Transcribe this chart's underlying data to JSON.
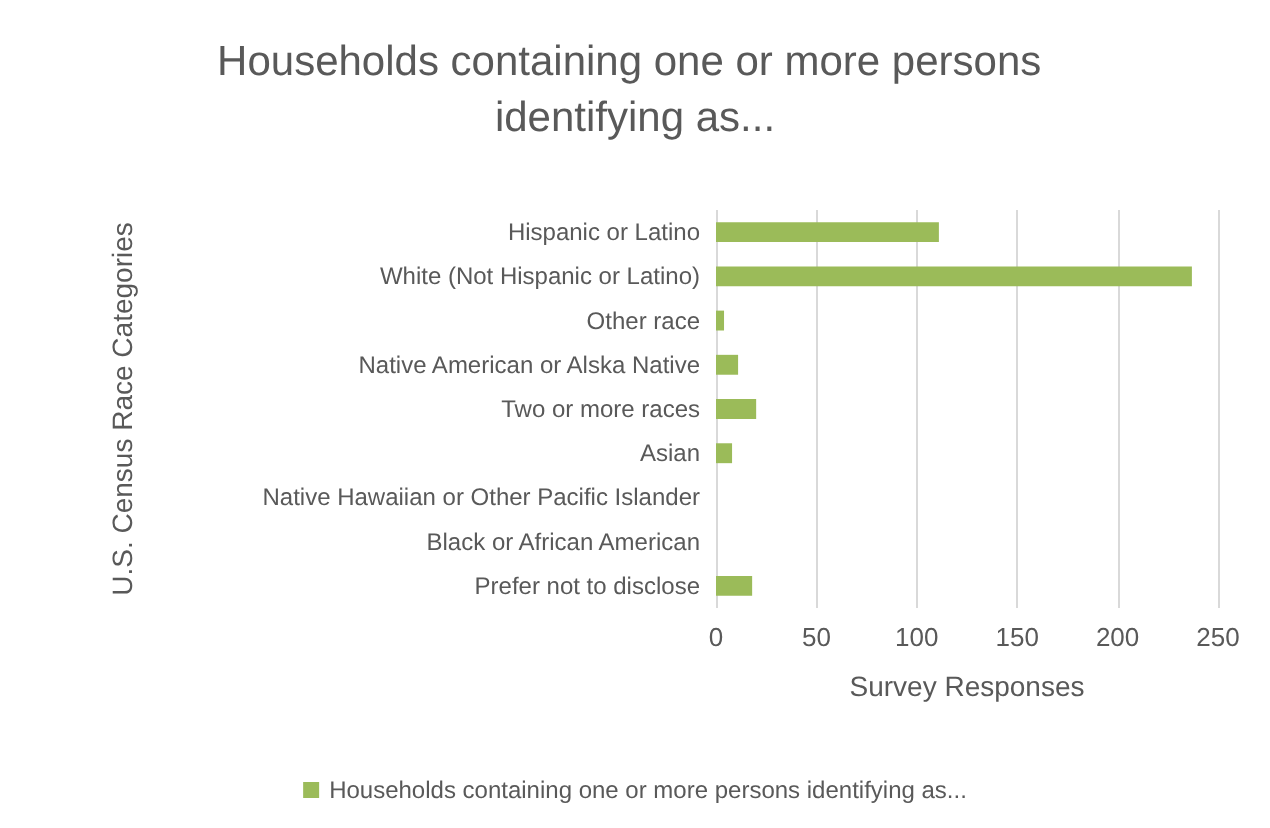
{
  "chart_data": {
    "type": "bar",
    "orientation": "horizontal",
    "title": "Households containing one or more persons identifying as...",
    "categories": [
      "Hispanic or Latino",
      "White (Not Hispanic or Latino)",
      "Other race",
      "Native American or Alska Native",
      "Two or more races",
      "Asian",
      "Native Hawaiian or Other Pacific Islander",
      "Black or African American",
      "Prefer not to disclose"
    ],
    "series": [
      {
        "name": "Households containing one or more persons identifying as...",
        "color": "#9bbb59",
        "values": [
          111,
          237,
          4,
          11,
          20,
          8,
          0,
          0,
          18
        ]
      }
    ],
    "xlabel": "Survey Responses",
    "ylabel": "U.S. Census Race Categories",
    "xlim": [
      0,
      250
    ],
    "xticks": [
      0,
      50,
      100,
      150,
      200,
      250
    ],
    "grid": "x",
    "legend": "bottom"
  }
}
